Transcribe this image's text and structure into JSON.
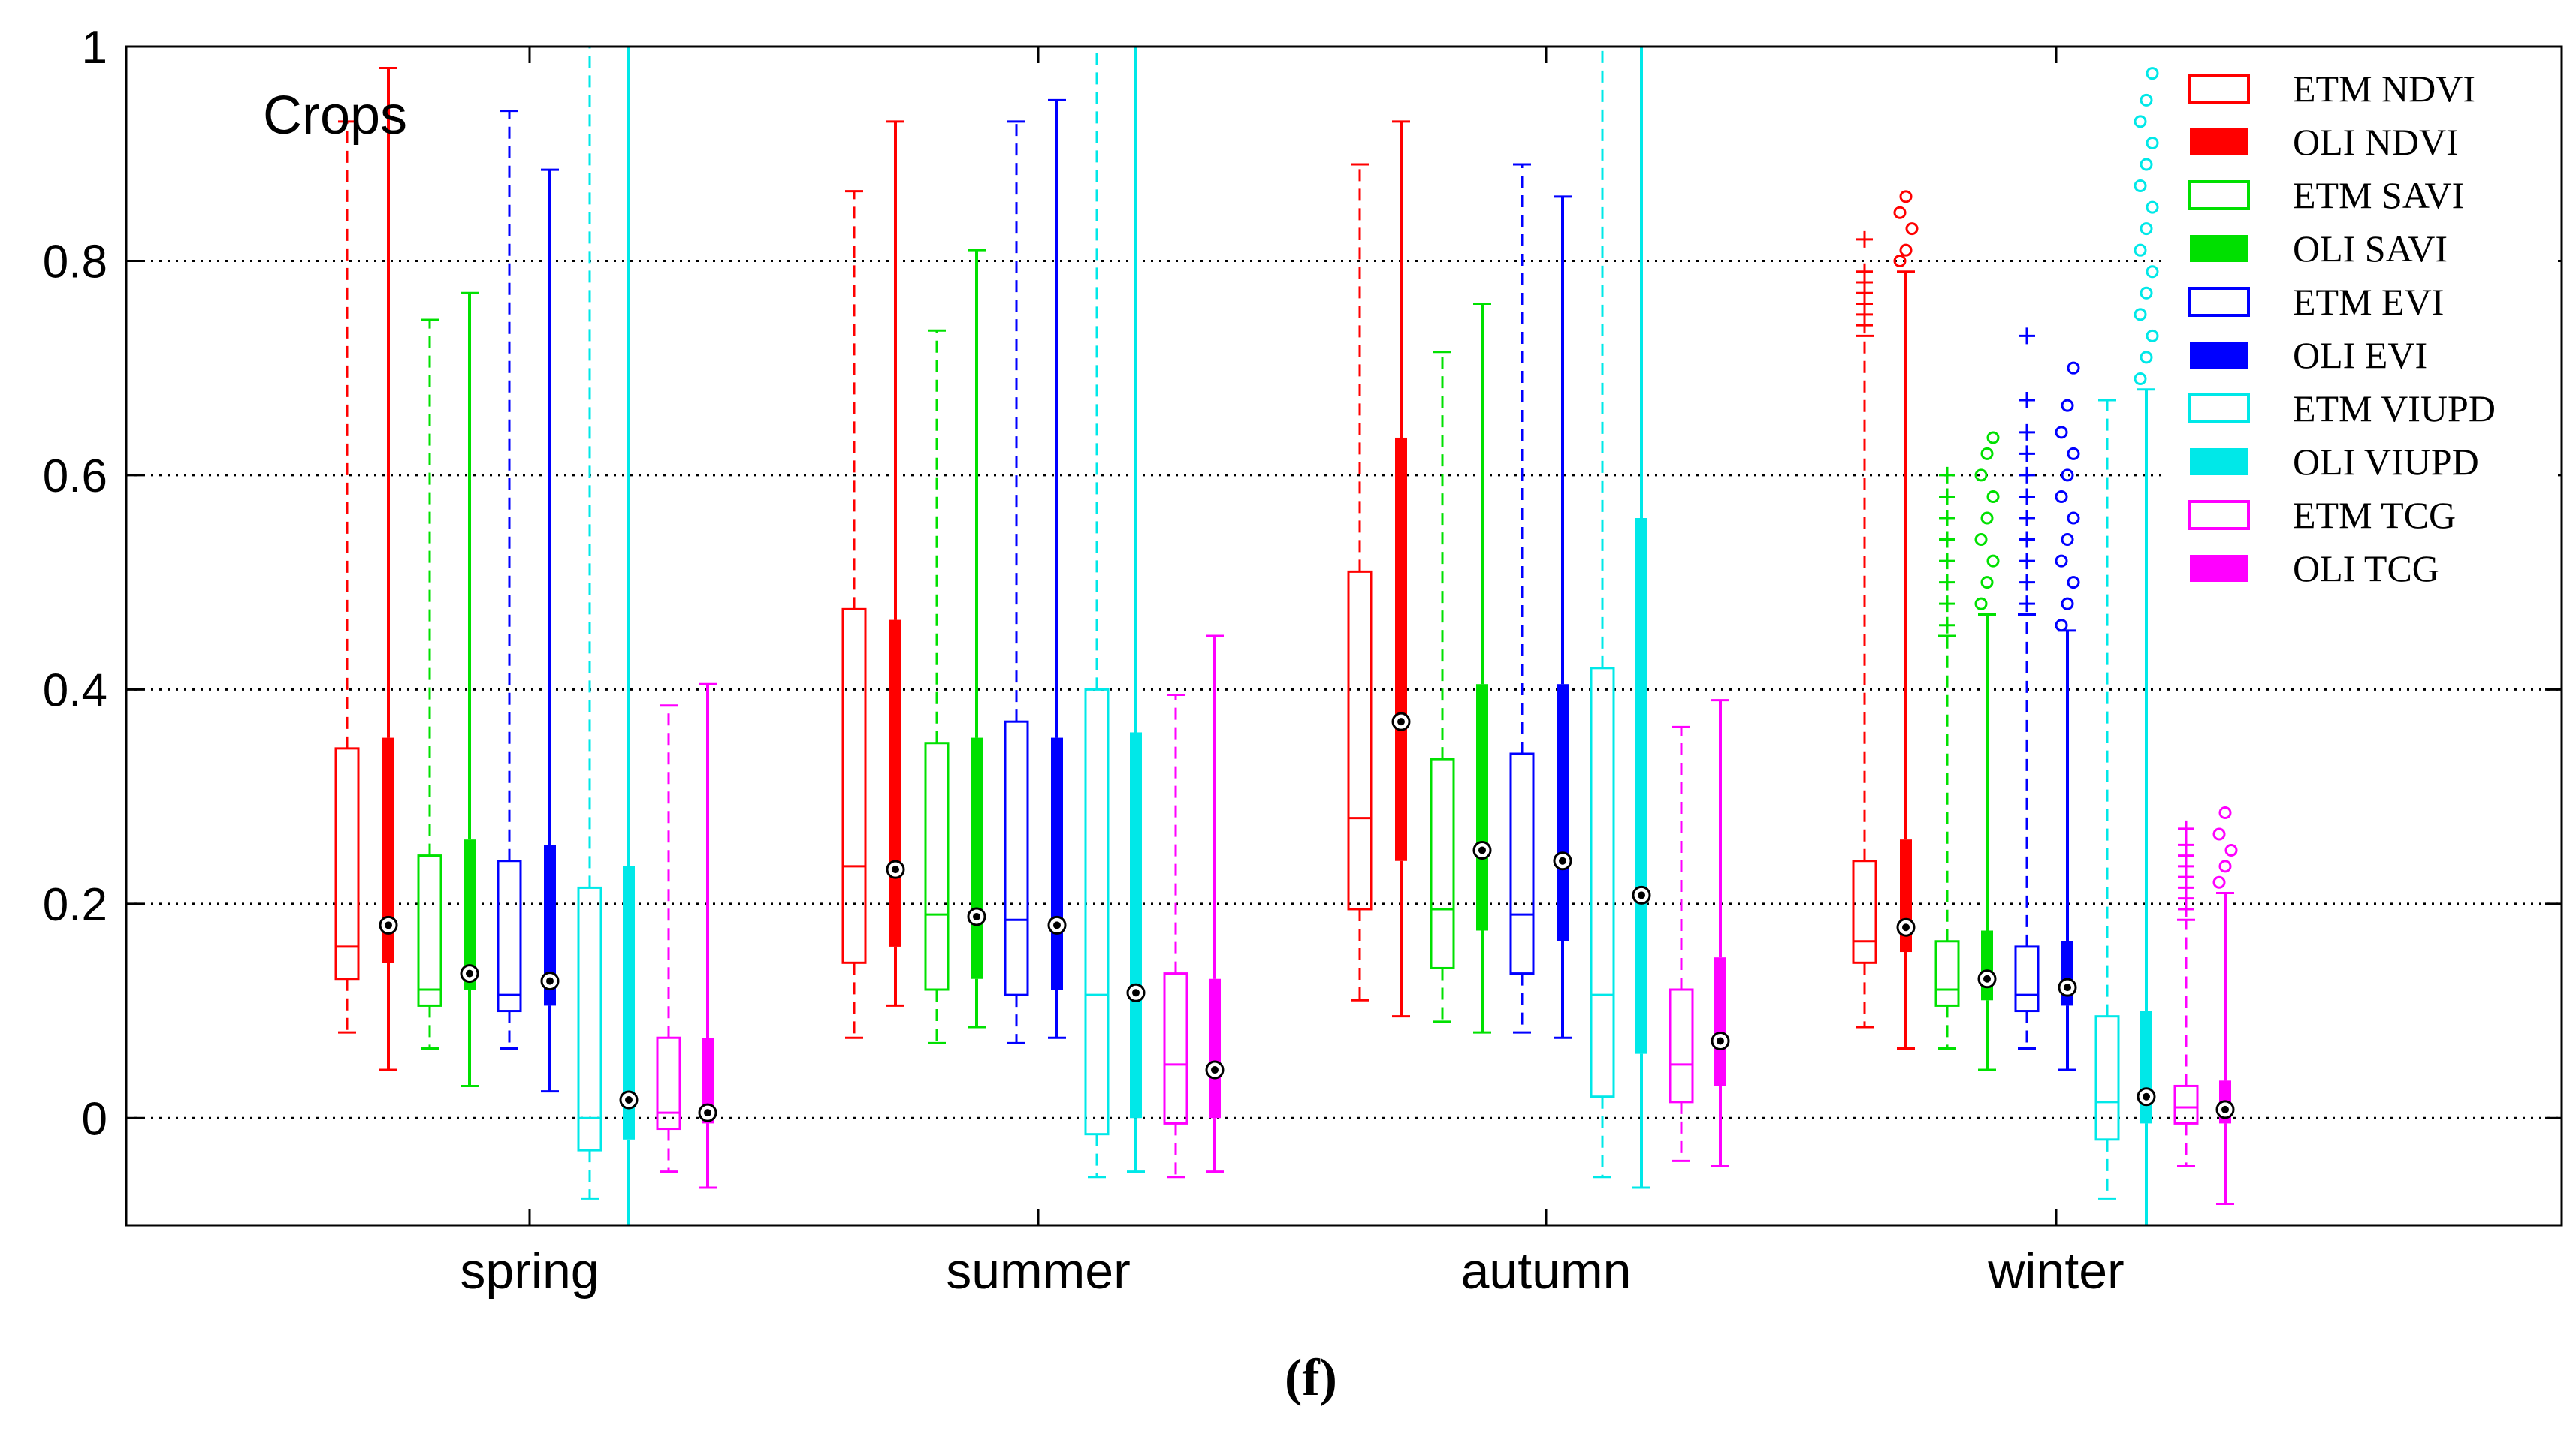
{
  "chart_data": {
    "type": "boxplot",
    "title": "",
    "annotation": "Crops",
    "caption": "(f)",
    "xlabel": "",
    "ylabel": "",
    "ylim": [
      -0.1,
      1.0
    ],
    "yticks": [
      0,
      0.2,
      0.4,
      0.6,
      0.8,
      1
    ],
    "ytick_labels": [
      "0",
      "0.2",
      "0.4",
      "0.6",
      "0.8",
      "1"
    ],
    "grid": "horizontal dotted",
    "legend_position": "top-right",
    "categories": [
      "spring",
      "summer",
      "autumn",
      "winter"
    ],
    "series": [
      {
        "name": "ETM NDVI",
        "color": "#ff0000",
        "style": "outline",
        "boxes": [
          {
            "whislo": 0.08,
            "q1": 0.13,
            "med": 0.16,
            "q3": 0.345,
            "whishi": 0.93
          },
          {
            "whislo": 0.075,
            "q1": 0.145,
            "med": 0.235,
            "q3": 0.475,
            "whishi": 0.865
          },
          {
            "whislo": 0.11,
            "q1": 0.195,
            "med": 0.28,
            "q3": 0.51,
            "whishi": 0.89
          },
          {
            "whislo": 0.085,
            "q1": 0.145,
            "med": 0.165,
            "q3": 0.24,
            "whishi": 0.73,
            "outliers": [
              0.74,
              0.75,
              0.76,
              0.77,
              0.78,
              0.79,
              0.82
            ]
          }
        ]
      },
      {
        "name": "OLI NDVI",
        "color": "#ff0000",
        "style": "filled",
        "boxes": [
          {
            "whislo": 0.045,
            "q1": 0.145,
            "med": 0.18,
            "q3": 0.355,
            "whishi": 0.98
          },
          {
            "whislo": 0.105,
            "q1": 0.16,
            "med": 0.232,
            "q3": 0.465,
            "whishi": 0.93
          },
          {
            "whislo": 0.095,
            "q1": 0.24,
            "med": 0.37,
            "q3": 0.635,
            "whishi": 0.93
          },
          {
            "whislo": 0.065,
            "q1": 0.155,
            "med": 0.178,
            "q3": 0.26,
            "whishi": 0.79,
            "outliers": [
              0.8,
              0.81,
              0.83,
              0.845,
              0.86
            ]
          }
        ]
      },
      {
        "name": "ETM SAVI",
        "color": "#00e000",
        "style": "outline",
        "boxes": [
          {
            "whislo": 0.065,
            "q1": 0.105,
            "med": 0.12,
            "q3": 0.245,
            "whishi": 0.745
          },
          {
            "whislo": 0.07,
            "q1": 0.12,
            "med": 0.19,
            "q3": 0.35,
            "whishi": 0.735
          },
          {
            "whislo": 0.09,
            "q1": 0.14,
            "med": 0.195,
            "q3": 0.335,
            "whishi": 0.715
          },
          {
            "whislo": 0.065,
            "q1": 0.105,
            "med": 0.12,
            "q3": 0.165,
            "whishi": 0.45,
            "outliers": [
              0.46,
              0.48,
              0.5,
              0.52,
              0.54,
              0.56,
              0.58,
              0.6
            ]
          }
        ]
      },
      {
        "name": "OLI SAVI",
        "color": "#00e000",
        "style": "filled",
        "boxes": [
          {
            "whislo": 0.03,
            "q1": 0.12,
            "med": 0.135,
            "q3": 0.26,
            "whishi": 0.77
          },
          {
            "whislo": 0.085,
            "q1": 0.13,
            "med": 0.188,
            "q3": 0.355,
            "whishi": 0.81
          },
          {
            "whislo": 0.08,
            "q1": 0.175,
            "med": 0.25,
            "q3": 0.405,
            "whishi": 0.76
          },
          {
            "whislo": 0.045,
            "q1": 0.11,
            "med": 0.13,
            "q3": 0.175,
            "whishi": 0.47,
            "outliers": [
              0.48,
              0.5,
              0.52,
              0.54,
              0.56,
              0.58,
              0.6,
              0.62,
              0.635
            ]
          }
        ]
      },
      {
        "name": "ETM EVI",
        "color": "#0000ff",
        "style": "outline",
        "boxes": [
          {
            "whislo": 0.065,
            "q1": 0.1,
            "med": 0.115,
            "q3": 0.24,
            "whishi": 0.94
          },
          {
            "whislo": 0.07,
            "q1": 0.115,
            "med": 0.185,
            "q3": 0.37,
            "whishi": 0.93
          },
          {
            "whislo": 0.08,
            "q1": 0.135,
            "med": 0.19,
            "q3": 0.34,
            "whishi": 0.89
          },
          {
            "whislo": 0.065,
            "q1": 0.1,
            "med": 0.115,
            "q3": 0.16,
            "whishi": 0.47,
            "outliers": [
              0.48,
              0.5,
              0.52,
              0.54,
              0.56,
              0.58,
              0.6,
              0.62,
              0.64,
              0.67,
              0.73
            ]
          }
        ]
      },
      {
        "name": "OLI EVI",
        "color": "#0000ff",
        "style": "filled",
        "boxes": [
          {
            "whislo": 0.025,
            "q1": 0.105,
            "med": 0.128,
            "q3": 0.255,
            "whishi": 0.885
          },
          {
            "whislo": 0.075,
            "q1": 0.12,
            "med": 0.18,
            "q3": 0.355,
            "whishi": 0.95
          },
          {
            "whislo": 0.075,
            "q1": 0.165,
            "med": 0.24,
            "q3": 0.405,
            "whishi": 0.86
          },
          {
            "whislo": 0.045,
            "q1": 0.105,
            "med": 0.122,
            "q3": 0.165,
            "whishi": 0.455,
            "outliers": [
              0.46,
              0.48,
              0.5,
              0.52,
              0.54,
              0.56,
              0.58,
              0.6,
              0.62,
              0.64,
              0.665,
              0.7
            ]
          }
        ]
      },
      {
        "name": "ETM VIUPD",
        "color": "#00e8e8",
        "style": "outline",
        "boxes": [
          {
            "whislo": -0.075,
            "q1": -0.03,
            "med": 0.0,
            "q3": 0.215,
            "whishi": 1.0
          },
          {
            "whislo": -0.055,
            "q1": -0.015,
            "med": 0.115,
            "q3": 0.4,
            "whishi": 1.0
          },
          {
            "whislo": -0.055,
            "q1": 0.02,
            "med": 0.115,
            "q3": 0.42,
            "whishi": 1.0
          },
          {
            "whislo": -0.075,
            "q1": -0.02,
            "med": 0.015,
            "q3": 0.095,
            "whishi": 0.67
          }
        ]
      },
      {
        "name": "OLI VIUPD",
        "color": "#00e8e8",
        "style": "filled",
        "boxes": [
          {
            "whislo": -0.1,
            "q1": -0.02,
            "med": 0.017,
            "q3": 0.235,
            "whishi": 1.0
          },
          {
            "whislo": -0.05,
            "q1": 0.0,
            "med": 0.117,
            "q3": 0.36,
            "whishi": 1.0
          },
          {
            "whislo": -0.065,
            "q1": 0.06,
            "med": 0.208,
            "q3": 0.56,
            "whishi": 1.0
          },
          {
            "whislo": -0.1,
            "q1": -0.005,
            "med": 0.02,
            "q3": 0.1,
            "whishi": 0.68,
            "outliers": [
              0.69,
              0.71,
              0.73,
              0.75,
              0.77,
              0.79,
              0.81,
              0.83,
              0.85,
              0.87,
              0.89,
              0.91,
              0.93,
              0.95,
              0.975
            ]
          }
        ]
      },
      {
        "name": "ETM TCG",
        "color": "#ff00ff",
        "style": "outline",
        "boxes": [
          {
            "whislo": -0.05,
            "q1": -0.01,
            "med": 0.005,
            "q3": 0.075,
            "whishi": 0.385
          },
          {
            "whislo": -0.055,
            "q1": -0.005,
            "med": 0.05,
            "q3": 0.135,
            "whishi": 0.395
          },
          {
            "whislo": -0.04,
            "q1": 0.015,
            "med": 0.05,
            "q3": 0.12,
            "whishi": 0.365
          },
          {
            "whislo": -0.045,
            "q1": -0.005,
            "med": 0.01,
            "q3": 0.03,
            "whishi": 0.185,
            "outliers": [
              0.195,
              0.205,
              0.215,
              0.225,
              0.235,
              0.245,
              0.255,
              0.27
            ]
          }
        ]
      },
      {
        "name": "OLI TCG",
        "color": "#ff00ff",
        "style": "filled",
        "boxes": [
          {
            "whislo": -0.065,
            "q1": -0.005,
            "med": 0.005,
            "q3": 0.075,
            "whishi": 0.405
          },
          {
            "whislo": -0.05,
            "q1": 0.0,
            "med": 0.045,
            "q3": 0.13,
            "whishi": 0.45
          },
          {
            "whislo": -0.045,
            "q1": 0.03,
            "med": 0.072,
            "q3": 0.15,
            "whishi": 0.39
          },
          {
            "whislo": -0.08,
            "q1": -0.005,
            "med": 0.008,
            "q3": 0.035,
            "whishi": 0.21,
            "outliers": [
              0.22,
              0.235,
              0.25,
              0.265,
              0.285
            ]
          }
        ]
      }
    ]
  }
}
